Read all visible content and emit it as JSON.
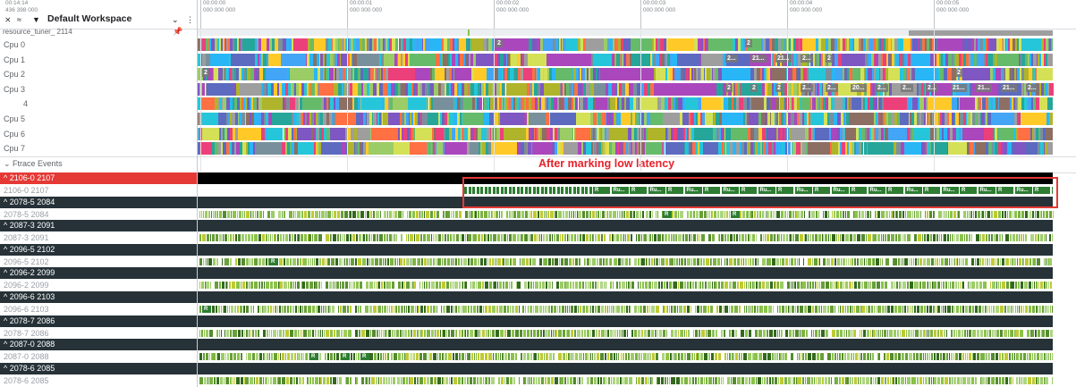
{
  "header": {
    "clock_line1": "00:14:14",
    "clock_line2": "436 398 000",
    "workspace_name": "Default Workspace",
    "ticks": [
      {
        "t": "00:00:00",
        "s": "000 000 000"
      },
      {
        "t": "00:00:01",
        "s": "000 000 000"
      },
      {
        "t": "00:00:02",
        "s": "000 000 000"
      },
      {
        "t": "00:00:03",
        "s": "000 000 000"
      },
      {
        "t": "00:00:04",
        "s": "000 000 000"
      },
      {
        "t": "00:00:05",
        "s": "000 000 000"
      }
    ]
  },
  "process": {
    "name": "resource_tuner_ 2114"
  },
  "cpus": [
    {
      "label": "Cpu 0",
      "tags": [
        "2",
        "2"
      ]
    },
    {
      "label": "Cpu 1",
      "tags": [
        "2...",
        "21...",
        "21...",
        "2...",
        "2"
      ]
    },
    {
      "label": "Cpu 2",
      "tags": [
        "2",
        "2"
      ]
    },
    {
      "label": "Cpu 3",
      "tags": [
        "2",
        "2",
        "2",
        "2...",
        "2...",
        "20...",
        "2...",
        "2...",
        "2...",
        "21...",
        "21...",
        "21...",
        "2..."
      ]
    },
    {
      "label": "4",
      "tags": []
    },
    {
      "label": "Cpu 5",
      "tags": []
    },
    {
      "label": "Cpu 6",
      "tags": []
    },
    {
      "label": "Cpu 7",
      "tags": []
    }
  ],
  "ftrace": {
    "label": "Ftrace Events"
  },
  "annotation": "After marking low latency",
  "threads": [
    {
      "head": "2106-0 2107",
      "sub": "2106-0 2107",
      "selected": true
    },
    {
      "head": "2078-5 2084",
      "sub": "2078-5 2084",
      "selected": false
    },
    {
      "head": "2087-3 2091",
      "sub": "2087-3 2091",
      "selected": false
    },
    {
      "head": "2096-5 2102",
      "sub": "2096-5 2102",
      "selected": false
    },
    {
      "head": "2096-2 2099",
      "sub": "2096-2 2099",
      "selected": false
    },
    {
      "head": "2096-6 2103",
      "sub": "2096-6 2103",
      "selected": false
    },
    {
      "head": "2078-7 2086",
      "sub": "2078-7 2086",
      "selected": false
    },
    {
      "head": "2087-0 2088",
      "sub": "2087-0 2088",
      "selected": false
    },
    {
      "head": "2078-6 2085",
      "sub": "2078-6 2085",
      "selected": false
    }
  ],
  "run_labels": {
    "short": "R",
    "long": "Ru..."
  },
  "colors": {
    "selected_thread": "#e53935",
    "thread_header": "#263238",
    "annotation": "#e8222a",
    "running": "#2e7d32",
    "runnable": "#9ccc65"
  }
}
